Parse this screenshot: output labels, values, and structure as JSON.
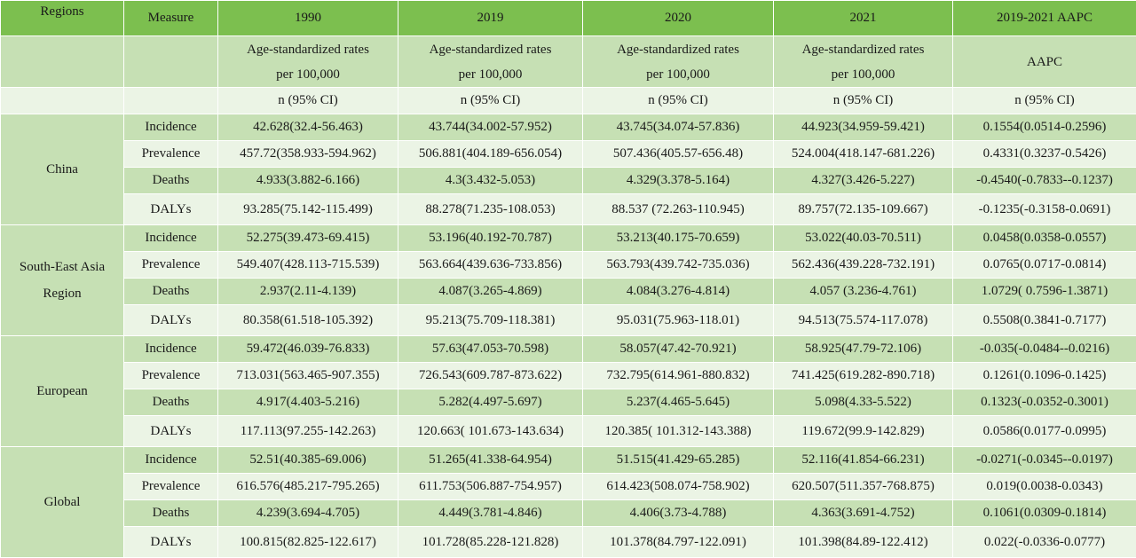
{
  "header": {
    "regions": "Regions",
    "measure": "Measure",
    "years": [
      "1990",
      "2019",
      "2020",
      "2021",
      "2019-2021 AAPC"
    ]
  },
  "subheader": {
    "rate_line1": "Age-standardized rates",
    "rate_line2": "per 100,000",
    "aapc": "AAPC",
    "ci": "n (95% CI)"
  },
  "regions": [
    {
      "name": "China",
      "rows": [
        {
          "measure": "Incidence",
          "values": [
            "42.628(32.4-56.463)",
            "43.744(34.002-57.952)",
            "43.745(34.074-57.836)",
            "44.923(34.959-59.421)",
            "0.1554(0.0514-0.2596)"
          ]
        },
        {
          "measure": "Prevalence",
          "values": [
            "457.72(358.933-594.962)",
            "506.881(404.189-656.054)",
            "507.436(405.57-656.48)",
            "524.004(418.147-681.226)",
            "0.4331(0.3237-0.5426)"
          ]
        },
        {
          "measure": "Deaths",
          "values": [
            "4.933(3.882-6.166)",
            "4.3(3.432-5.053)",
            "4.329(3.378-5.164)",
            "4.327(3.426-5.227)",
            "-0.4540(-0.7833--0.1237)"
          ]
        },
        {
          "measure": "DALYs",
          "values": [
            "93.285(75.142-115.499)",
            "88.278(71.235-108.053)",
            "88.537 (72.263-110.945)",
            "89.757(72.135-109.667)",
            "-0.1235(-0.3158-0.0691)"
          ]
        }
      ]
    },
    {
      "name_line1": "South-East Asia",
      "name_line2": "Region",
      "rows": [
        {
          "measure": "Incidence",
          "values": [
            "52.275(39.473-69.415)",
            "53.196(40.192-70.787)",
            "53.213(40.175-70.659)",
            "53.022(40.03-70.511)",
            "0.0458(0.0358-0.0557)"
          ]
        },
        {
          "measure": "Prevalence",
          "values": [
            "549.407(428.113-715.539)",
            "563.664(439.636-733.856)",
            "563.793(439.742-735.036)",
            "562.436(439.228-732.191)",
            "0.0765(0.0717-0.0814)"
          ]
        },
        {
          "measure": "Deaths",
          "values": [
            "2.937(2.11-4.139)",
            "4.087(3.265-4.869)",
            "4.084(3.276-4.814)",
            "4.057 (3.236-4.761)",
            "1.0729( 0.7596-1.3871)"
          ]
        },
        {
          "measure": "DALYs",
          "values": [
            "80.358(61.518-105.392)",
            "95.213(75.709-118.381)",
            "95.031(75.963-118.01)",
            "94.513(75.574-117.078)",
            "0.5508(0.3841-0.7177)"
          ]
        }
      ]
    },
    {
      "name": "European",
      "rows": [
        {
          "measure": "Incidence",
          "values": [
            "59.472(46.039-76.833)",
            "57.63(47.053-70.598)",
            "58.057(47.42-70.921)",
            "58.925(47.79-72.106)",
            "-0.035(-0.0484--0.0216)"
          ]
        },
        {
          "measure": "Prevalence",
          "values": [
            "713.031(563.465-907.355)",
            "726.543(609.787-873.622)",
            "732.795(614.961-880.832)",
            "741.425(619.282-890.718)",
            "0.1261(0.1096-0.1425)"
          ]
        },
        {
          "measure": "Deaths",
          "values": [
            "4.917(4.403-5.216)",
            "5.282(4.497-5.697)",
            "5.237(4.465-5.645)",
            "5.098(4.33-5.522)",
            "0.1323(-0.0352-0.3001)"
          ]
        },
        {
          "measure": "DALYs",
          "values": [
            "117.113(97.255-142.263)",
            "120.663( 101.673-143.634)",
            "120.385( 101.312-143.388)",
            "119.672(99.9-142.829)",
            "0.0586(0.0177-0.0995)"
          ]
        }
      ]
    },
    {
      "name": "Global",
      "rows": [
        {
          "measure": "Incidence",
          "values": [
            "52.51(40.385-69.006)",
            "51.265(41.338-64.954)",
            "51.515(41.429-65.285)",
            "52.116(41.854-66.231)",
            "-0.0271(-0.0345--0.0197)"
          ]
        },
        {
          "measure": "Prevalence",
          "values": [
            "616.576(485.217-795.265)",
            "611.753(506.887-754.957)",
            "614.423(508.074-758.902)",
            "620.507(511.357-768.875)",
            "0.019(0.0038-0.0343)"
          ]
        },
        {
          "measure": "Deaths",
          "values": [
            "4.239(3.694-4.705)",
            "4.449(3.781-4.846)",
            "4.406(3.73-4.788)",
            "4.363(3.691-4.752)",
            "0.1061(0.0309-0.1814)"
          ]
        },
        {
          "measure": "DALYs",
          "values": [
            "100.815(82.825-122.617)",
            "101.728(85.228-121.828)",
            "101.378(84.797-122.091)",
            "101.398(84.89-122.412)",
            "0.022(-0.0336-0.0777)"
          ]
        }
      ]
    }
  ]
}
